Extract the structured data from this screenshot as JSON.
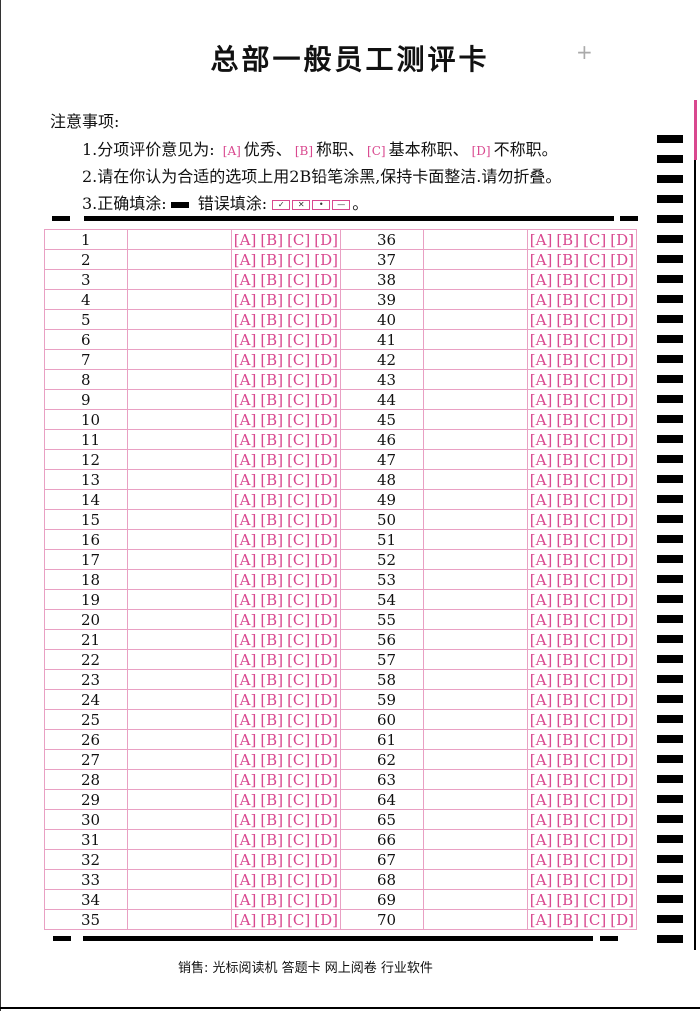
{
  "title": "总部一般员工测评卡",
  "notes": {
    "heading": "注意事项:",
    "line1_prefix": "1.分项评价意见为:",
    "line1_items": [
      {
        "code": "A",
        "label": "优秀、"
      },
      {
        "code": "B",
        "label": "称职、"
      },
      {
        "code": "C",
        "label": "基本称职、"
      },
      {
        "code": "D",
        "label": "不称职。"
      }
    ],
    "line2": "2.请在你认为合适的选项上用2B铅笔涂黑,保持卡面整洁.请勿折叠。",
    "line3_correct": "3.正确填涂:",
    "line3_wrong": "错误填涂:",
    "line3_end": "。"
  },
  "options": [
    "A",
    "B",
    "C",
    "D"
  ],
  "questions_left": [
    1,
    2,
    3,
    4,
    5,
    6,
    7,
    8,
    9,
    10,
    11,
    12,
    13,
    14,
    15,
    16,
    17,
    18,
    19,
    20,
    21,
    22,
    23,
    24,
    25,
    26,
    27,
    28,
    29,
    30,
    31,
    32,
    33,
    34,
    35
  ],
  "questions_right": [
    36,
    37,
    38,
    39,
    40,
    41,
    42,
    43,
    44,
    45,
    46,
    47,
    48,
    49,
    50,
    51,
    52,
    53,
    54,
    55,
    56,
    57,
    58,
    59,
    60,
    61,
    62,
    63,
    64,
    65,
    66,
    67,
    68,
    69,
    70
  ],
  "footer": "销售: 光标阅读机  答题卡  网上阅卷  行业软件",
  "colors": {
    "accent": "#d9488f",
    "ink": "#000000"
  }
}
